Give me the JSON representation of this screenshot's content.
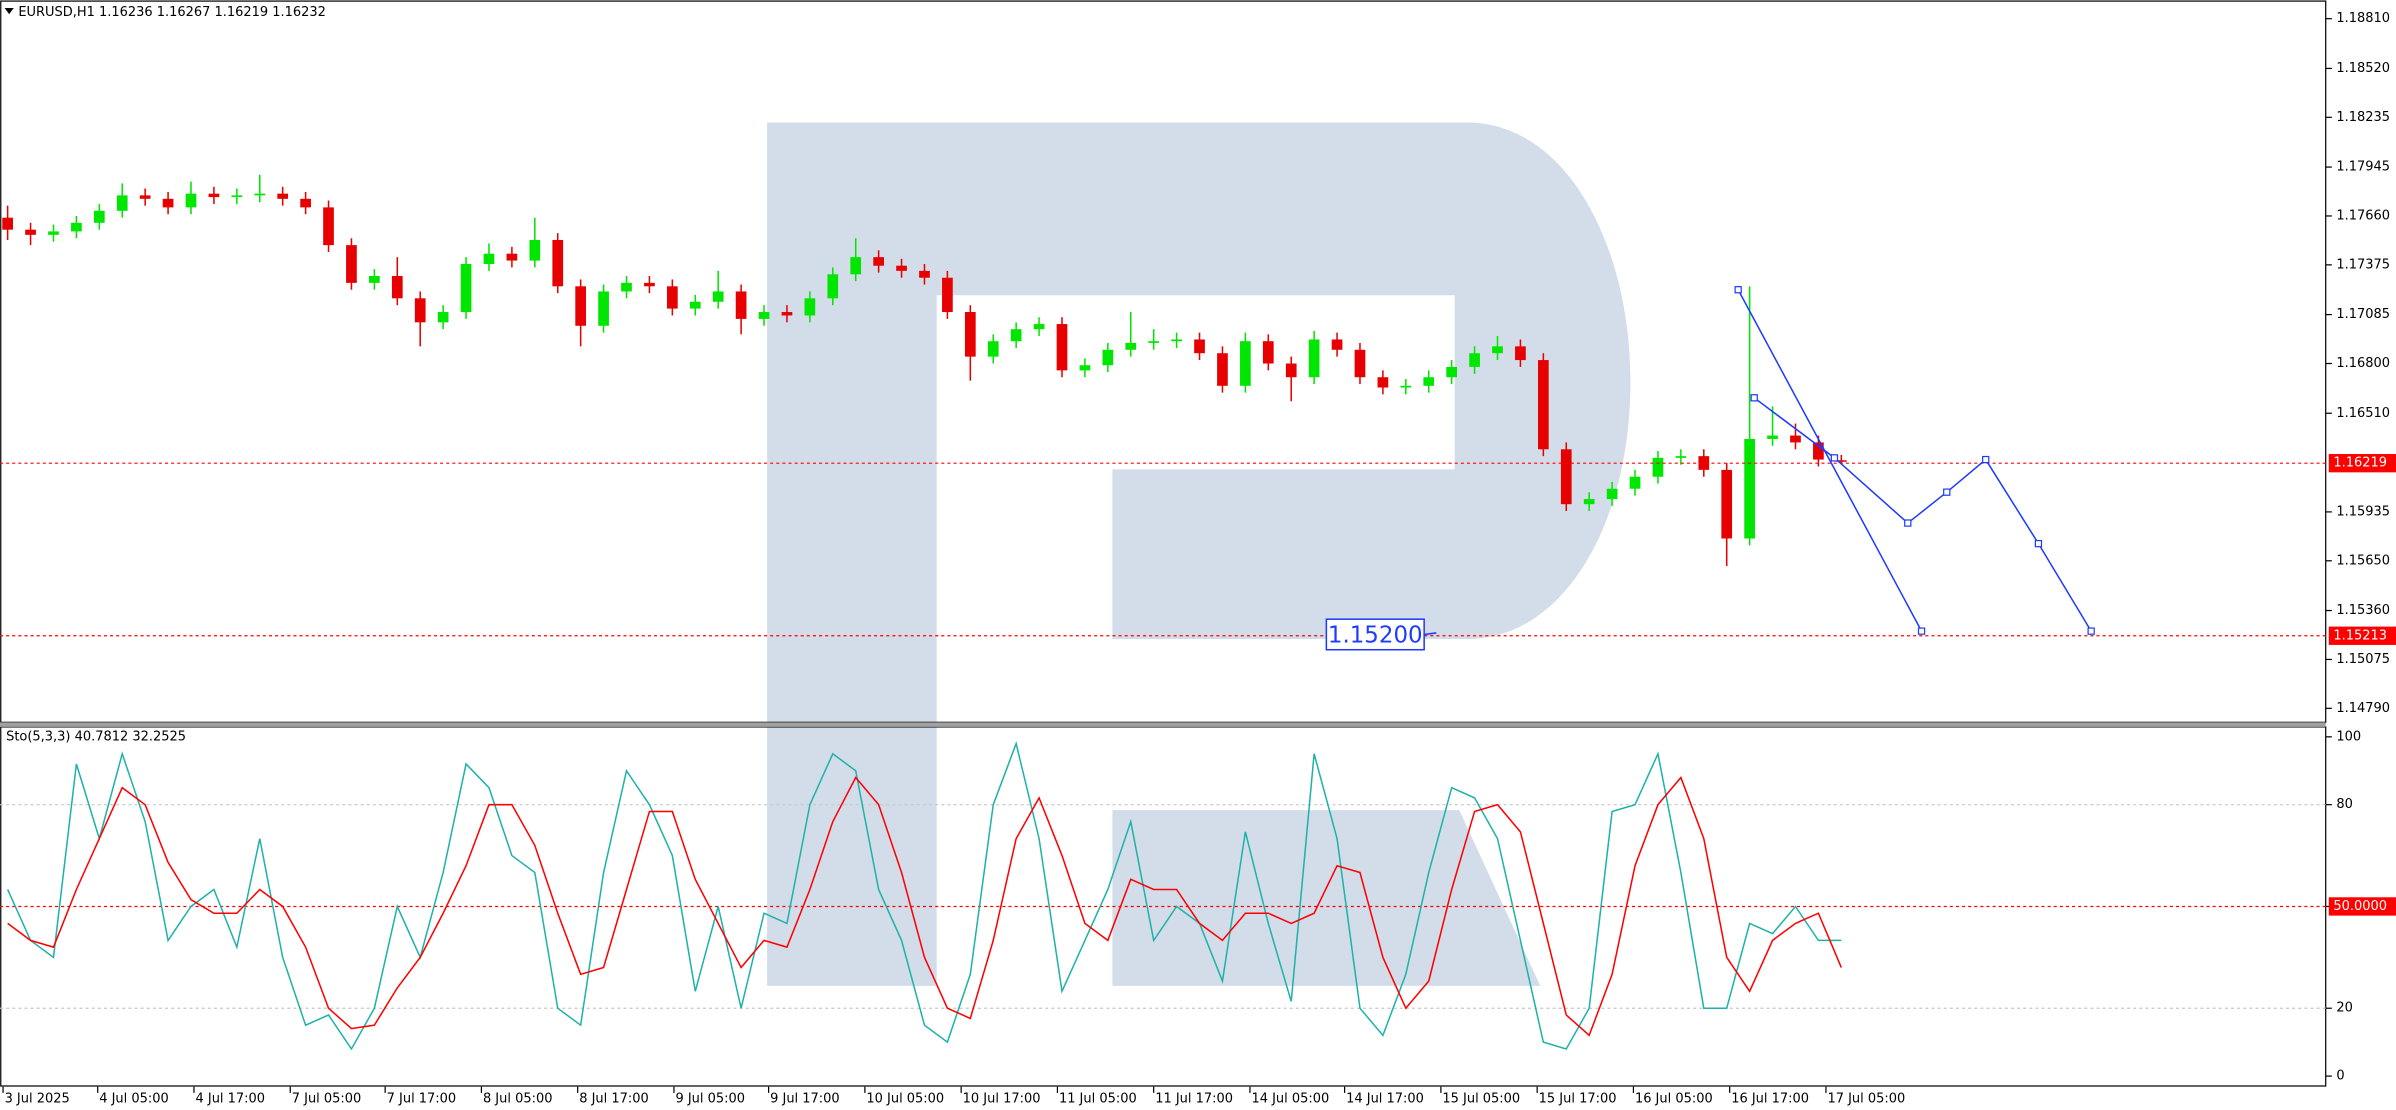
{
  "chart_data": [
    {
      "type": "candlestick",
      "title": "EURUSD,H1  1.16236 1.16267 1.16219 1.16232",
      "up_color": "#00e600",
      "down_color": "#e60000",
      "xlim": [
        -0.333,
        101.133
      ],
      "ylim": [
        1.14704,
        1.18917
      ],
      "yticks": [
        {
          "value": 1.1881,
          "label": "1.18810"
        },
        {
          "value": 1.1852,
          "label": "1.18520"
        },
        {
          "value": 1.18235,
          "label": "1.18235"
        },
        {
          "value": 1.17945,
          "label": "1.17945"
        },
        {
          "value": 1.1766,
          "label": "1.17660"
        },
        {
          "value": 1.17375,
          "label": "1.17375"
        },
        {
          "value": 1.17085,
          "label": "1.17085"
        },
        {
          "value": 1.168,
          "label": "1.16800"
        },
        {
          "value": 1.1651,
          "label": "1.16510"
        },
        {
          "value": 1.15935,
          "label": "1.15935"
        },
        {
          "value": 1.1565,
          "label": "1.15650"
        },
        {
          "value": 1.1536,
          "label": "1.15360"
        },
        {
          "value": 1.15075,
          "label": "1.15075"
        },
        {
          "value": 1.1479,
          "label": "1.14790"
        }
      ],
      "price_lines": [
        {
          "value": 1.16219,
          "label": "1.16219",
          "color": "#ff0000"
        },
        {
          "value": 1.15213,
          "label": "1.15213",
          "color": "#ff0000"
        }
      ],
      "annotation": "1.15200",
      "forecast_color": "#1e3cff",
      "forecast": [
        {
          "x": [
            75.5,
            83.5
          ],
          "values": [
            1.1723,
            1.1524
          ]
        },
        {
          "x": [
            76.2,
            79.7,
            82.9,
            84.6,
            86.3,
            88.6,
            90.9
          ],
          "values": [
            1.166,
            1.1625,
            1.1587,
            1.1605,
            1.1624,
            1.1575,
            1.1524
          ]
        }
      ],
      "candles": [
        [
          1.1765,
          1.1772,
          1.1752,
          1.1758
        ],
        [
          1.1758,
          1.1762,
          1.1749,
          1.1755
        ],
        [
          1.1755,
          1.1761,
          1.1751,
          1.1757
        ],
        [
          1.1757,
          1.1766,
          1.1753,
          1.1762
        ],
        [
          1.1762,
          1.1773,
          1.1758,
          1.1769
        ],
        [
          1.1769,
          1.1785,
          1.1765,
          1.1778
        ],
        [
          1.1778,
          1.1782,
          1.1772,
          1.1776
        ],
        [
          1.1776,
          1.178,
          1.1767,
          1.1771
        ],
        [
          1.1771,
          1.1786,
          1.1767,
          1.1779
        ],
        [
          1.1779,
          1.1783,
          1.1773,
          1.1777
        ],
        [
          1.1777,
          1.1782,
          1.1773,
          1.1778
        ],
        [
          1.1778,
          1.179,
          1.1774,
          1.1779
        ],
        [
          1.1779,
          1.1783,
          1.1772,
          1.1776
        ],
        [
          1.1776,
          1.178,
          1.1767,
          1.1771
        ],
        [
          1.1771,
          1.1775,
          1.1745,
          1.1749
        ],
        [
          1.1749,
          1.1753,
          1.1723,
          1.1727
        ],
        [
          1.1727,
          1.1735,
          1.1723,
          1.1731
        ],
        [
          1.1731,
          1.1742,
          1.1714,
          1.1718
        ],
        [
          1.1718,
          1.1722,
          1.169,
          1.1704
        ],
        [
          1.1704,
          1.1714,
          1.17,
          1.171
        ],
        [
          1.171,
          1.1742,
          1.1706,
          1.1738
        ],
        [
          1.1738,
          1.175,
          1.1734,
          1.1744
        ],
        [
          1.1744,
          1.1748,
          1.1736,
          1.174
        ],
        [
          1.174,
          1.1765,
          1.1736,
          1.1752
        ],
        [
          1.1752,
          1.1756,
          1.1721,
          1.1725
        ],
        [
          1.1725,
          1.1729,
          1.169,
          1.1702
        ],
        [
          1.1702,
          1.1726,
          1.1698,
          1.1722
        ],
        [
          1.1722,
          1.1731,
          1.1718,
          1.1727
        ],
        [
          1.1727,
          1.1731,
          1.1721,
          1.1725
        ],
        [
          1.1725,
          1.1729,
          1.1708,
          1.1712
        ],
        [
          1.1712,
          1.172,
          1.1708,
          1.1716
        ],
        [
          1.1716,
          1.1734,
          1.1712,
          1.1722
        ],
        [
          1.1722,
          1.1726,
          1.1697,
          1.1706
        ],
        [
          1.1706,
          1.1714,
          1.1702,
          1.171
        ],
        [
          1.171,
          1.1714,
          1.1704,
          1.1708
        ],
        [
          1.1708,
          1.1722,
          1.1704,
          1.1718
        ],
        [
          1.1718,
          1.1736,
          1.1714,
          1.1732
        ],
        [
          1.1732,
          1.1753,
          1.1728,
          1.1742
        ],
        [
          1.1742,
          1.1746,
          1.1733,
          1.1737
        ],
        [
          1.1737,
          1.1741,
          1.173,
          1.1734
        ],
        [
          1.1734,
          1.1738,
          1.1726,
          1.173
        ],
        [
          1.173,
          1.1734,
          1.1706,
          1.171
        ],
        [
          1.171,
          1.1714,
          1.167,
          1.1684
        ],
        [
          1.1684,
          1.1697,
          1.168,
          1.1693
        ],
        [
          1.1693,
          1.1704,
          1.1689,
          1.17
        ],
        [
          1.17,
          1.1707,
          1.1696,
          1.1703
        ],
        [
          1.1703,
          1.1707,
          1.1672,
          1.1676
        ],
        [
          1.1676,
          1.1683,
          1.1672,
          1.1679
        ],
        [
          1.1679,
          1.1692,
          1.1675,
          1.1688
        ],
        [
          1.1688,
          1.171,
          1.1684,
          1.1692
        ],
        [
          1.1692,
          1.17,
          1.1688,
          1.1693
        ],
        [
          1.1693,
          1.1698,
          1.1689,
          1.1694
        ],
        [
          1.1694,
          1.1698,
          1.1682,
          1.1686
        ],
        [
          1.1686,
          1.169,
          1.1663,
          1.1667
        ],
        [
          1.1667,
          1.1698,
          1.1663,
          1.1693
        ],
        [
          1.1693,
          1.1697,
          1.1676,
          1.168
        ],
        [
          1.168,
          1.1684,
          1.1658,
          1.1672
        ],
        [
          1.1672,
          1.1699,
          1.1668,
          1.1694
        ],
        [
          1.1694,
          1.1698,
          1.1684,
          1.1688
        ],
        [
          1.1688,
          1.1692,
          1.1668,
          1.1672
        ],
        [
          1.1672,
          1.1676,
          1.1662,
          1.1666
        ],
        [
          1.1666,
          1.1671,
          1.1662,
          1.1667
        ],
        [
          1.1667,
          1.1676,
          1.1663,
          1.1672
        ],
        [
          1.1672,
          1.1682,
          1.1668,
          1.1678
        ],
        [
          1.1678,
          1.169,
          1.1674,
          1.1686
        ],
        [
          1.1686,
          1.1696,
          1.1682,
          1.169
        ],
        [
          1.169,
          1.1694,
          1.1678,
          1.1682
        ],
        [
          1.1682,
          1.1686,
          1.1626,
          1.163
        ],
        [
          1.163,
          1.1634,
          1.1594,
          1.1598
        ],
        [
          1.1598,
          1.1605,
          1.1594,
          1.1601
        ],
        [
          1.1601,
          1.1611,
          1.1597,
          1.1607
        ],
        [
          1.1607,
          1.1618,
          1.1603,
          1.1614
        ],
        [
          1.1614,
          1.1629,
          1.161,
          1.1625
        ],
        [
          1.1625,
          1.163,
          1.1621,
          1.1626
        ],
        [
          1.1626,
          1.163,
          1.1614,
          1.1618
        ],
        [
          1.1618,
          1.1622,
          1.1562,
          1.1578
        ],
        [
          1.1578,
          1.1725,
          1.1574,
          1.1636
        ],
        [
          1.1636,
          1.1655,
          1.1632,
          1.1638
        ],
        [
          1.1638,
          1.1645,
          1.163,
          1.1634
        ],
        [
          1.1634,
          1.1638,
          1.162,
          1.1624
        ],
        [
          1.16236,
          1.16267,
          1.16219,
          1.16232
        ]
      ]
    },
    {
      "type": "line",
      "title": "Sto(5,3,3) 40.7812 32.2525",
      "xlim": [
        -0.333,
        101.133
      ],
      "ylim": [
        -2.7,
        102.7
      ],
      "yticks": [
        0,
        20,
        {
          "value": 50,
          "label": "50.0000"
        },
        80,
        100
      ],
      "levels": [
        {
          "value": 20,
          "color": "#c8c8c8"
        },
        {
          "value": 50,
          "color": "#ff0000"
        },
        {
          "value": 80,
          "color": "#c8c8c8"
        }
      ],
      "xticks": [
        {
          "value": -0.2,
          "label": "3 Jul 2025"
        },
        {
          "value": 3.93,
          "label": "4 Jul 05:00"
        },
        {
          "value": 8.13,
          "label": "4 Jul 17:00"
        },
        {
          "value": 12.33,
          "label": "7 Jul 05:00"
        },
        {
          "value": 16.47,
          "label": "7 Jul 17:00"
        },
        {
          "value": 20.67,
          "label": "8 Jul 05:00"
        },
        {
          "value": 24.87,
          "label": "8 Jul 17:00"
        },
        {
          "value": 29.07,
          "label": "9 Jul 05:00"
        },
        {
          "value": 33.2,
          "label": "9 Jul 17:00"
        },
        {
          "value": 37.4,
          "label": "10 Jul 05:00"
        },
        {
          "value": 41.6,
          "label": "10 Jul 17:00"
        },
        {
          "value": 45.8,
          "label": "11 Jul 05:00"
        },
        {
          "value": 50,
          "label": "11 Jul 17:00"
        },
        {
          "value": 54.2,
          "label": "14 Jul 05:00"
        },
        {
          "value": 58.33,
          "label": "14 Jul 17:00"
        },
        {
          "value": 62.53,
          "label": "15 Jul 05:00"
        },
        {
          "value": 66.73,
          "label": "15 Jul 17:00"
        },
        {
          "value": 70.93,
          "label": "16 Jul 05:00"
        },
        {
          "value": 75.13,
          "label": "16 Jul 17:00"
        },
        {
          "value": 79.33,
          "label": "17 Jul 05:00"
        }
      ],
      "series": [
        {
          "color": "#20b2aa",
          "values": [
            55,
            40,
            35,
            92,
            70,
            95,
            75,
            40,
            50,
            55,
            38,
            70,
            35,
            15,
            18,
            8,
            20,
            50,
            35,
            60,
            92,
            85,
            65,
            60,
            20,
            15,
            60,
            90,
            80,
            65,
            25,
            50,
            20,
            48,
            45,
            80,
            95,
            90,
            55,
            40,
            15,
            10,
            30,
            80,
            98,
            70,
            25,
            40,
            55,
            75,
            40,
            50,
            45,
            28,
            72,
            45,
            22,
            95,
            70,
            20,
            12,
            30,
            60,
            85,
            82,
            70,
            40,
            10,
            8,
            20,
            78,
            80,
            95,
            60,
            20,
            20,
            45,
            42,
            50,
            40,
            40
          ]
        },
        {
          "color": "#ff0000",
          "values": [
            45,
            40,
            38,
            55,
            70,
            85,
            80,
            63,
            52,
            48,
            48,
            55,
            50,
            38,
            20,
            14,
            15,
            26,
            35,
            48,
            62,
            80,
            80,
            68,
            48,
            30,
            32,
            55,
            78,
            78,
            58,
            45,
            32,
            40,
            38,
            55,
            75,
            88,
            80,
            60,
            35,
            20,
            17,
            40,
            70,
            82,
            65,
            45,
            40,
            58,
            55,
            55,
            45,
            40,
            48,
            48,
            45,
            48,
            62,
            60,
            35,
            20,
            28,
            55,
            78,
            80,
            72,
            45,
            18,
            12,
            30,
            62,
            80,
            88,
            70,
            35,
            25,
            40,
            45,
            48,
            32
          ]
        }
      ]
    }
  ]
}
